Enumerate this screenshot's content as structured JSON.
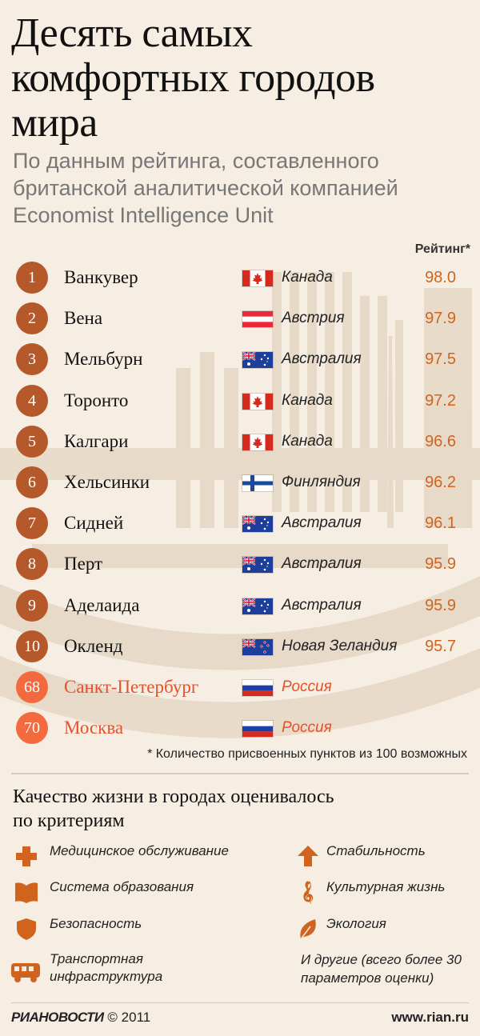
{
  "title_lines": [
    "Десять самых",
    "комфортных городов",
    "мира"
  ],
  "subtitle_lines": [
    "По данным рейтинга, составленного",
    "британской аналитической компанией",
    "Economist Intelligence Unit"
  ],
  "rating_header": "Рейтинг*",
  "cities": [
    {
      "rank": "1",
      "city": "Ванкувер",
      "flag": "canada",
      "country": "Канада",
      "score": "98.0"
    },
    {
      "rank": "2",
      "city": "Вена",
      "flag": "austria",
      "country": "Австрия",
      "score": "97.9"
    },
    {
      "rank": "3",
      "city": "Мельбурн",
      "flag": "australia",
      "country": "Австралия",
      "score": "97.5"
    },
    {
      "rank": "4",
      "city": "Торонто",
      "flag": "canada",
      "country": "Канада",
      "score": "97.2"
    },
    {
      "rank": "5",
      "city": "Калгари",
      "flag": "canada",
      "country": "Канада",
      "score": "96.6"
    },
    {
      "rank": "6",
      "city": "Хельсинки",
      "flag": "finland",
      "country": "Финляндия",
      "score": "96.2"
    },
    {
      "rank": "7",
      "city": "Сидней",
      "flag": "australia",
      "country": "Австралия",
      "score": "96.1"
    },
    {
      "rank": "8",
      "city": "Перт",
      "flag": "australia",
      "country": "Австралия",
      "score": "95.9"
    },
    {
      "rank": "9",
      "city": "Аделаида",
      "flag": "australia",
      "country": "Австралия",
      "score": "95.9"
    },
    {
      "rank": "10",
      "city": "Окленд",
      "flag": "newzealand",
      "country": "Новая Зеландия",
      "score": "95.7"
    },
    {
      "rank": "68",
      "city": "Санкт-Петербург",
      "flag": "russia",
      "country": "Россия",
      "score": ""
    },
    {
      "rank": "70",
      "city": "Москва",
      "flag": "russia",
      "country": "Россия",
      "score": ""
    }
  ],
  "footnote": "* Количество присвоенных пунктов из 100 возможных",
  "criteria_title_lines": [
    "Качество жизни в городах оценивалось",
    "по критериям"
  ],
  "criteria": {
    "medicine": {
      "label": "Медицинское обслуживание",
      "icon": "cross-icon"
    },
    "education": {
      "label": "Система образования",
      "icon": "book-icon"
    },
    "safety": {
      "label": "Безопасность",
      "icon": "shield-icon"
    },
    "transport": {
      "label_lines": [
        "Транспортная",
        "инфраструктура"
      ],
      "icon": "bus-icon"
    },
    "stability": {
      "label": "Стабильность",
      "icon": "arrow-up-icon"
    },
    "culture": {
      "label": "Культурная жизнь",
      "icon": "treble-clef-icon"
    },
    "ecology": {
      "label": "Экология",
      "icon": "leaf-icon"
    }
  },
  "others_lines": [
    "И другие (всего более 30",
    "параметров оценки)"
  ],
  "footer": {
    "brand": "РИАНОВОСТИ",
    "copyright": "© 2011",
    "site": "www.rian.ru"
  },
  "colors": {
    "rank_badge": "#b5592a",
    "russia_badge": "#f26a3d",
    "score": "#d0641f",
    "accent": "#e8502a",
    "background": "#f6eee3"
  }
}
